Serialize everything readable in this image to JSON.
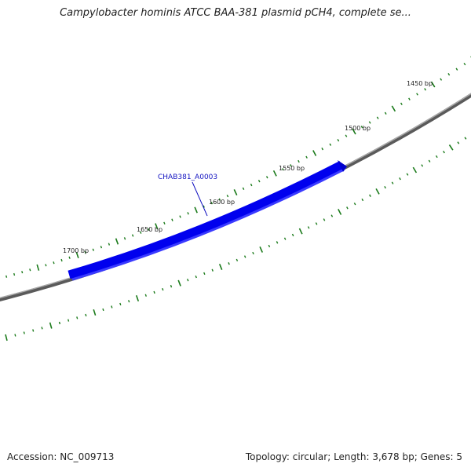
{
  "title": "Campylobacter hominis ATCC BAA-381 plasmid pCH4, complete se...",
  "footer": {
    "accession": "Accession: NC_009713",
    "summary": "Topology: circular; Length: 3,678 bp; Genes: 5"
  },
  "ruler": {
    "labels": [
      "1450 bp",
      "1500 bp",
      "1550 bp",
      "1600 bp",
      "1650 bp",
      "1700 bp"
    ]
  },
  "gene": {
    "label": "CHAB381_A0003",
    "color": "#0000ee",
    "strand": "reverse"
  },
  "colors": {
    "backbone": "#7a7a7a",
    "ticks": "#1a7a1a"
  }
}
